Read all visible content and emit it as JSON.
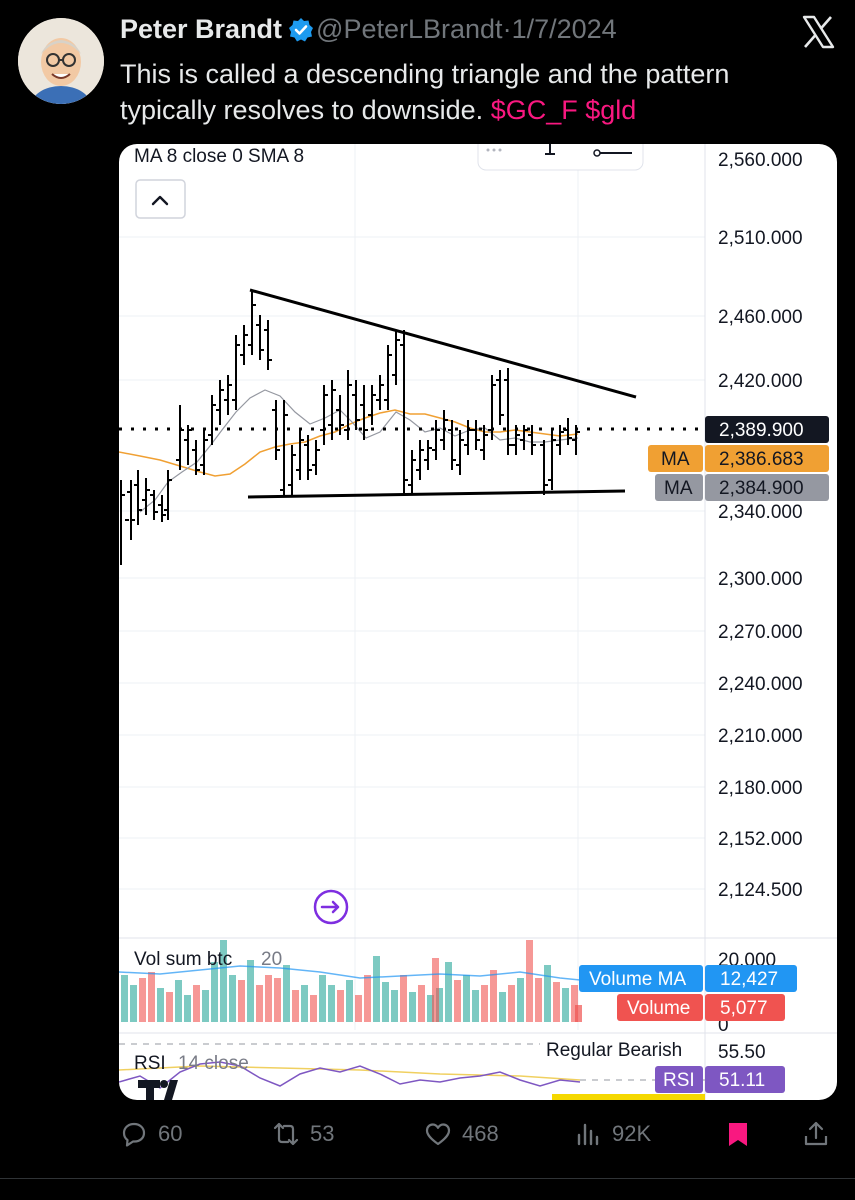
{
  "post": {
    "author_name": "Peter Brandt",
    "handle": "@PeterLBrandt",
    "separator": "·",
    "date": "1/7/2024",
    "text": "This is called a descending triangle and the pattern typically resolves to downside.",
    "cashtags": [
      "$GC_F",
      "$gld"
    ]
  },
  "colors": {
    "background": "#000000",
    "text_primary": "#e7e9ea",
    "text_secondary": "#71767b",
    "cashtag": "#f91880",
    "verified": "#1d9bf0",
    "bookmark": "#f91880",
    "ma_orange": "#f0a033",
    "ma_gray": "#9598a1",
    "volume_ma_blue": "#2196f3",
    "volume_red": "#f05350",
    "volume_green": "#26a69a",
    "rsi_purple": "#7e57c2"
  },
  "chart": {
    "indicator_label": "MA 8 close 0 SMA 8",
    "collapse_icon": "chevron-up-icon",
    "price_axis_labels": [
      "2,560.000",
      "2,510.000",
      "2,460.000",
      "2,420.000",
      "2,340.000",
      "2,300.000",
      "2,270.000",
      "2,240.000",
      "2,210.000",
      "2,180.000",
      "2,152.000",
      "2,124.500"
    ],
    "last_price": "2,389.900",
    "ma_orange_label": "MA",
    "ma_orange_value": "2,386.683",
    "ma_gray_label": "MA",
    "ma_gray_value": "2,384.900",
    "volume_label": "Vol sum btc",
    "volume_length": "20",
    "volume_axis_top": "20.000",
    "volume_axis_zero": "0",
    "volume_ma_label": "Volume MA",
    "volume_ma_value": "12,427",
    "volume_label_tag": "Volume",
    "volume_value": "5,077",
    "rsi_label": "RSI",
    "rsi_params": "14 close",
    "rsi_signal": "Regular Bearish",
    "rsi_level": "55.50",
    "rsi_tag": "RSI",
    "rsi_value": "51.11",
    "pattern": "descending triangle"
  },
  "actions": {
    "reply_count": "60",
    "repost_count": "53",
    "like_count": "468",
    "view_count": "92K"
  }
}
